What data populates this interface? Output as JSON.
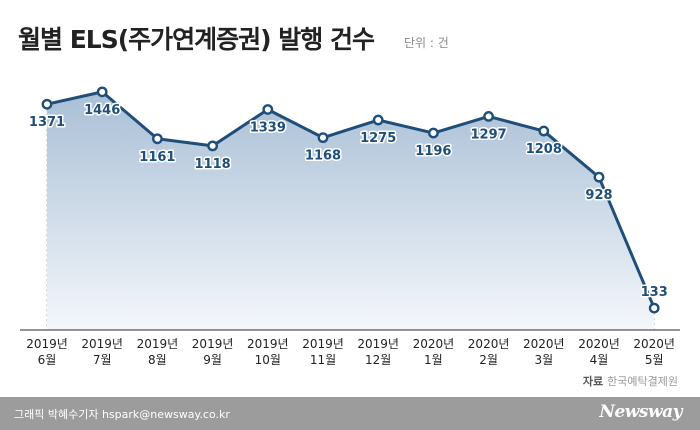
{
  "header": {
    "title": "월별 ELS(주가연계증권) 발행 건수",
    "unit": "단위 : 건"
  },
  "source": {
    "label": "자료",
    "name": "한국예탁결제원"
  },
  "footer": {
    "credit": "그래픽 박혜수기자 hspark@newsway.co.kr",
    "brand": "Newsway"
  },
  "colors": {
    "line": "#1f4e79",
    "area_top": "#a9bfd6",
    "area_bottom": "#f4f7fb",
    "gridline": "#9a9a9a",
    "footer_bg": "#9c9c9c"
  },
  "chart_data": {
    "type": "area",
    "categories": [
      [
        "2019년",
        "6월"
      ],
      [
        "2019년",
        "7월"
      ],
      [
        "2019년",
        "8월"
      ],
      [
        "2019년",
        "9월"
      ],
      [
        "2019년",
        "10월"
      ],
      [
        "2019년",
        "11월"
      ],
      [
        "2019년",
        "12월"
      ],
      [
        "2020년",
        "1월"
      ],
      [
        "2020년",
        "2월"
      ],
      [
        "2020년",
        "3월"
      ],
      [
        "2020년",
        "4월"
      ],
      [
        "2020년",
        "5월"
      ]
    ],
    "values": [
      1371,
      1446,
      1161,
      1118,
      1339,
      1168,
      1275,
      1196,
      1297,
      1208,
      928,
      133
    ],
    "ylim": [
      0,
      1600
    ],
    "grid": "vertical-dashed",
    "legend": "none",
    "data_labels": true
  }
}
